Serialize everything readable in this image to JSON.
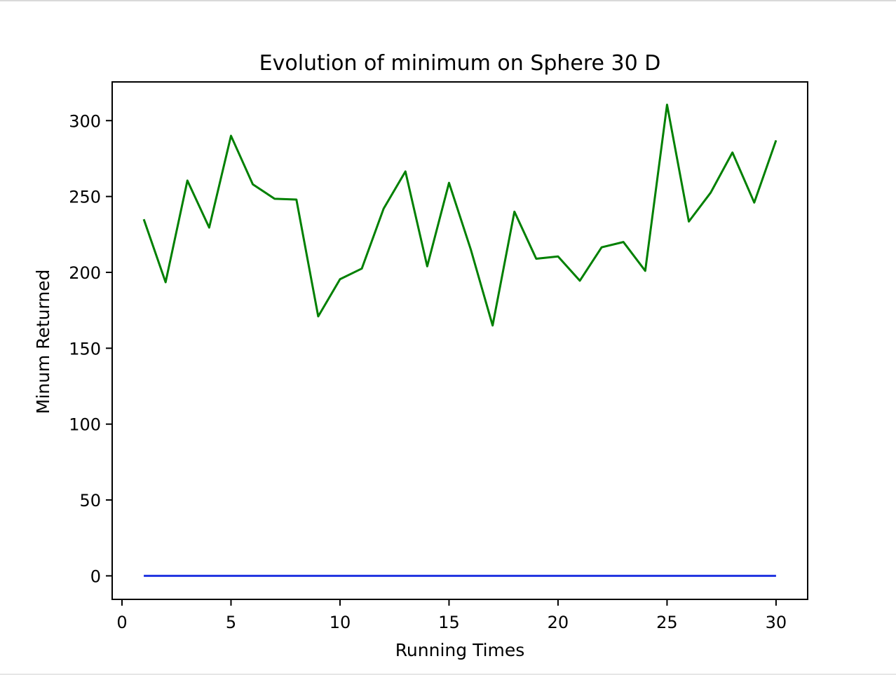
{
  "chart_data": {
    "type": "line",
    "title": "Evolution of minimum on Sphere 30 D",
    "xlabel": "Running Times",
    "ylabel": "Minum Returned",
    "xlim": [
      -0.45,
      31.45
    ],
    "ylim": [
      -15.5,
      325.5
    ],
    "xticks": [
      0,
      5,
      10,
      15,
      20,
      25,
      30
    ],
    "yticks": [
      0,
      50,
      100,
      150,
      200,
      250,
      300
    ],
    "grid": false,
    "x": [
      1,
      2,
      3,
      4,
      5,
      6,
      7,
      8,
      9,
      10,
      11,
      12,
      13,
      14,
      15,
      16,
      17,
      18,
      19,
      20,
      21,
      22,
      23,
      24,
      25,
      26,
      27,
      28,
      29,
      30
    ],
    "series": [
      {
        "color": "#008000",
        "values": [
          235,
          193.5,
          260.5,
          229.5,
          290,
          258,
          248.5,
          248,
          171,
          195.5,
          202.5,
          242,
          266.5,
          204,
          259,
          215,
          165,
          240,
          209,
          210.5,
          194.5,
          216.5,
          220,
          201,
          310.5,
          233.5,
          252.5,
          279,
          246,
          287
        ]
      },
      {
        "color": "#1f33e0",
        "values": [
          0,
          0,
          0,
          0,
          0,
          0,
          0,
          0,
          0,
          0,
          0,
          0,
          0,
          0,
          0,
          0,
          0,
          0,
          0,
          0,
          0,
          0,
          0,
          0,
          0,
          0,
          0,
          0,
          0,
          0
        ]
      }
    ]
  }
}
